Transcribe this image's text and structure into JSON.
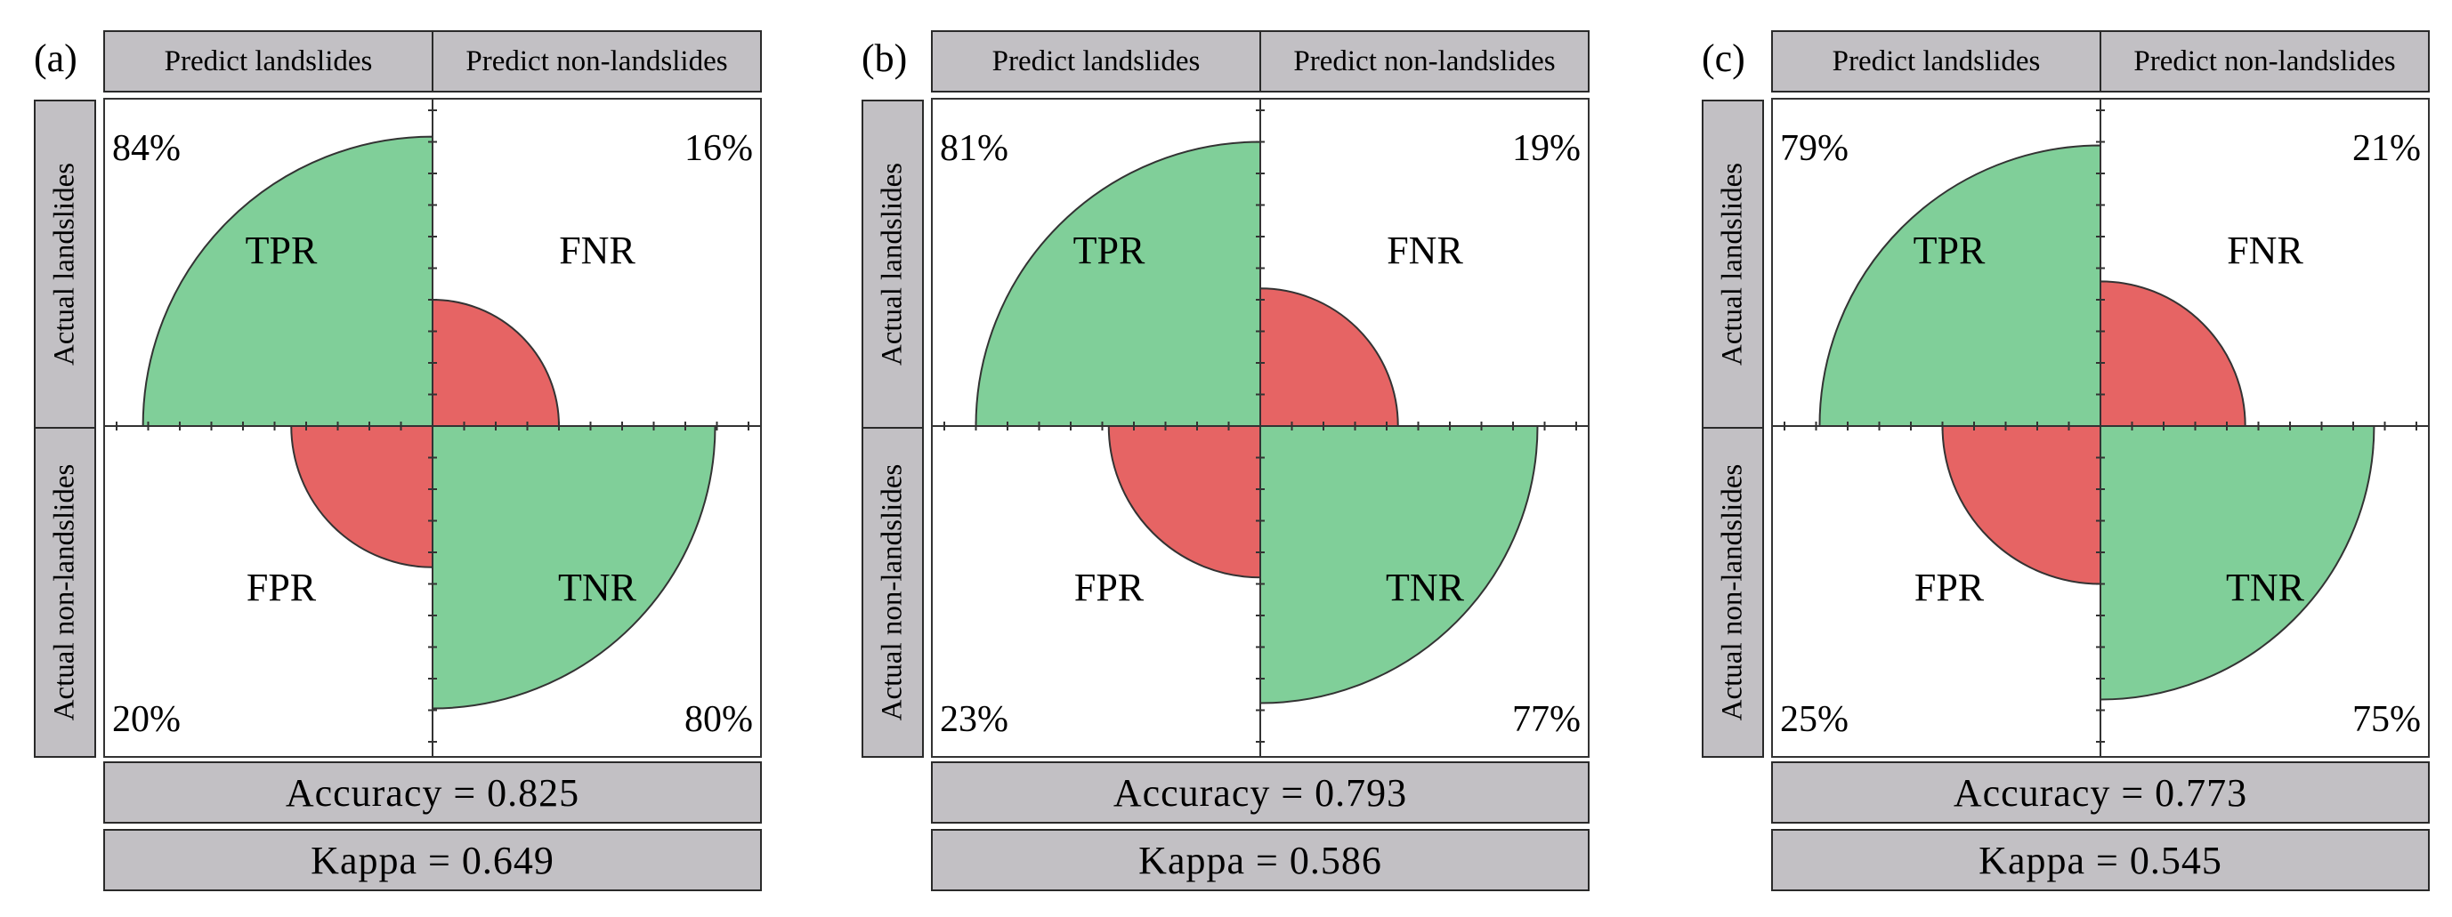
{
  "panels": [
    {
      "label": "(a)",
      "header_left": "Predict landslides",
      "header_right": "Predict non-landslides",
      "row_top": "Actual landslides",
      "row_bottom": "Actual non-landslides",
      "accuracy": "Accuracy = 0.825",
      "kappa": "Kappa = 0.649"
    },
    {
      "label": "(b)",
      "header_left": "Predict landslides",
      "header_right": "Predict non-landslides",
      "row_top": "Actual landslides",
      "row_bottom": "Actual non-landslides",
      "accuracy": "Accuracy = 0.793",
      "kappa": "Kappa = 0.586"
    },
    {
      "label": "(c)",
      "header_left": "Predict landslides",
      "header_right": "Predict non-landslides",
      "row_top": "Actual landslides",
      "row_bottom": "Actual non-landslides",
      "accuracy": "Accuracy = 0.773",
      "kappa": "Kappa = 0.545"
    }
  ],
  "colors": {
    "correct": "#80cf99",
    "error": "#e66464",
    "header_bg": "#c2c0c4"
  },
  "chart_data": [
    {
      "type": "fourfold",
      "panel": "(a)",
      "quadrants": [
        {
          "name": "TPR",
          "label": "84%",
          "value": 84,
          "position": "top-left",
          "kind": "correct"
        },
        {
          "name": "FNR",
          "label": "16%",
          "value": 16,
          "position": "top-right",
          "kind": "error"
        },
        {
          "name": "FPR",
          "label": "20%",
          "value": 20,
          "position": "bottom-left",
          "kind": "error"
        },
        {
          "name": "TNR",
          "label": "80%",
          "value": 80,
          "position": "bottom-right",
          "kind": "correct"
        }
      ],
      "accuracy": 0.825,
      "kappa": 0.649
    },
    {
      "type": "fourfold",
      "panel": "(b)",
      "quadrants": [
        {
          "name": "TPR",
          "label": "81%",
          "value": 81,
          "position": "top-left",
          "kind": "correct"
        },
        {
          "name": "FNR",
          "label": "19%",
          "value": 19,
          "position": "top-right",
          "kind": "error"
        },
        {
          "name": "FPR",
          "label": "23%",
          "value": 23,
          "position": "bottom-left",
          "kind": "error"
        },
        {
          "name": "TNR",
          "label": "77%",
          "value": 77,
          "position": "bottom-right",
          "kind": "correct"
        }
      ],
      "accuracy": 0.793,
      "kappa": 0.586
    },
    {
      "type": "fourfold",
      "panel": "(c)",
      "quadrants": [
        {
          "name": "TPR",
          "label": "79%",
          "value": 79,
          "position": "top-left",
          "kind": "correct"
        },
        {
          "name": "FNR",
          "label": "21%",
          "value": 21,
          "position": "top-right",
          "kind": "error"
        },
        {
          "name": "FPR",
          "label": "25%",
          "value": 25,
          "position": "bottom-left",
          "kind": "error"
        },
        {
          "name": "TNR",
          "label": "75%",
          "value": 75,
          "position": "bottom-right",
          "kind": "correct"
        }
      ],
      "accuracy": 0.773,
      "kappa": 0.545
    }
  ]
}
